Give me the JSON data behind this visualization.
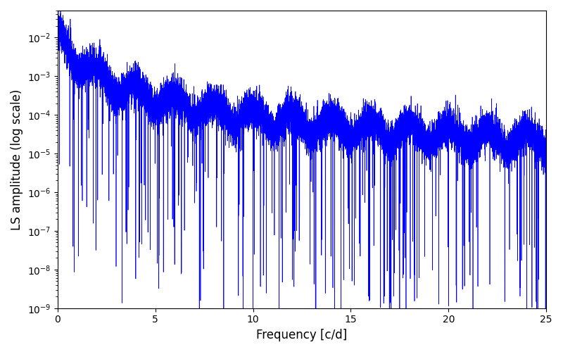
{
  "title": "",
  "xlabel": "Frequency [c/d]",
  "ylabel": "LS amplitude (log scale)",
  "line_color": "blue",
  "line_width": 0.5,
  "xlim": [
    0,
    25
  ],
  "ylim": [
    1e-09,
    0.05
  ],
  "yscale": "log",
  "figsize": [
    8.0,
    5.0
  ],
  "dpi": 100,
  "freq_min": 0.001,
  "freq_max": 25.0,
  "n_points": 15000,
  "seed": 12345,
  "base_amplitude": 0.018,
  "decay_power": 1.6,
  "decay_knee": 0.5,
  "noise_sigma": 0.55,
  "yticks": [
    1e-09,
    1e-08,
    1e-07,
    1e-06,
    1e-05,
    0.0001,
    0.001,
    0.01
  ],
  "xticks": [
    0,
    5,
    10,
    15,
    20,
    25
  ]
}
